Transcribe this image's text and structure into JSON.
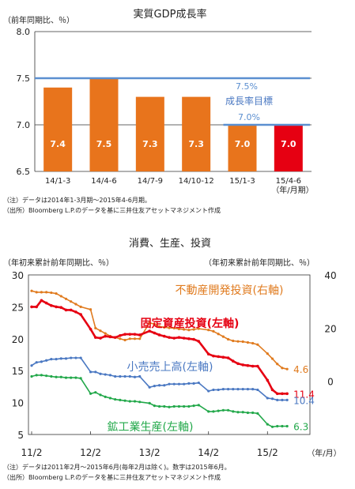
{
  "chart_data": [
    {
      "type": "bar",
      "title": "実質GDP成長率",
      "ylabel": "（前年同期比、％）",
      "categories": [
        "14/1-3",
        "14/4-6",
        "14/7-9",
        "14/10-12",
        "15/1-3",
        "15/4-6"
      ],
      "x_unit_label": "（年/月期）",
      "values": [
        7.4,
        7.5,
        7.3,
        7.3,
        7.0,
        7.0
      ],
      "data_labels": [
        "7.4",
        "7.5",
        "7.3",
        "7.3",
        "7.0",
        "7.0"
      ],
      "ylim": [
        6.5,
        8.0
      ],
      "yticks": [
        "6.5",
        "7.0",
        "7.5",
        "8.0"
      ],
      "bar_color": "#e8741c",
      "highlight_color": "#e60012",
      "target_line_color": "#5b8fd0",
      "targets": [
        {
          "label": "7.5%",
          "value": 7.5,
          "from_index": 0,
          "to_index": 5
        },
        {
          "label": "7.0%",
          "value": 7.0,
          "from_index": 4,
          "to_index": 5
        }
      ],
      "target_caption": "成長率目標",
      "notes": [
        "（注）データは2014年1-3月期～2015年4-6月期。",
        "（出所）Bloomberg L.P.のデータを基に三井住友アセットマネジメント作成"
      ]
    },
    {
      "type": "line",
      "title": "消費、生産、投資",
      "ylabel_left": "（年初来累計前年同期比、％）",
      "ylabel_right": "（年初来累計前年同期比、％）",
      "xlabel": "（年/月）",
      "x_ticks": [
        "11/2",
        "12/2",
        "13/2",
        "14/2",
        "15/2"
      ],
      "x_tick_positions": [
        0,
        12,
        24,
        36,
        48
      ],
      "x_range": [
        0,
        56
      ],
      "ylim_left": [
        5,
        30
      ],
      "yticks_left": [
        "5",
        "10",
        "15",
        "20",
        "25",
        "30"
      ],
      "ylim_right": [
        -20,
        40
      ],
      "yticks_right": [
        "0",
        "20",
        "40"
      ],
      "series": [
        {
          "name": "不動産開発投資(右軸)",
          "axis": "right",
          "color": "#e07b1f",
          "end_label": "4.6",
          "x": [
            0,
            1,
            2,
            3,
            4,
            5,
            6,
            7,
            8,
            9,
            10,
            12,
            13,
            14,
            15,
            16,
            17,
            18,
            19,
            20,
            21,
            22,
            24,
            25,
            26,
            27,
            28,
            29,
            30,
            31,
            32,
            33,
            34,
            36,
            37,
            38,
            39,
            40,
            41,
            42,
            43,
            44,
            45,
            46,
            48,
            49,
            50,
            51,
            52
          ],
          "y": [
            34,
            33.5,
            33.5,
            33.5,
            33.3,
            33,
            32,
            31,
            30,
            29,
            28,
            27,
            20,
            19,
            18,
            17,
            16.5,
            16,
            15.5,
            16,
            16,
            16,
            22,
            21.5,
            20.6,
            20.3,
            20.1,
            20,
            19.7,
            19.5,
            19.3,
            19.5,
            19.8,
            19.3,
            18.8,
            17.8,
            16.8,
            15.8,
            15.2,
            15,
            14.9,
            14.6,
            14.3,
            13.8,
            10.4,
            8.5,
            6.5,
            5,
            4.6
          ]
        },
        {
          "name": "固定資産投資(左軸)",
          "axis": "left",
          "color": "#e60012",
          "end_label": "11.4",
          "x": [
            0,
            1,
            2,
            3,
            4,
            5,
            6,
            7,
            8,
            9,
            10,
            12,
            13,
            14,
            15,
            16,
            17,
            18,
            19,
            20,
            21,
            22,
            24,
            25,
            26,
            27,
            28,
            29,
            30,
            31,
            32,
            33,
            34,
            36,
            37,
            38,
            39,
            40,
            41,
            42,
            43,
            44,
            45,
            46,
            48,
            49,
            50,
            51,
            52
          ],
          "y": [
            25,
            25,
            26,
            25.6,
            25.2,
            25,
            24.9,
            24.5,
            24.5,
            24.2,
            23.8,
            21.5,
            20.2,
            20.1,
            20.4,
            20.3,
            20.2,
            20.5,
            20.7,
            20.7,
            20.7,
            20.6,
            21.2,
            20.9,
            20.6,
            20.4,
            20.2,
            20.1,
            20.2,
            20.1,
            20,
            19.9,
            19.6,
            17.6,
            17.3,
            17.2,
            17.1,
            17,
            16.5,
            16.1,
            15.9,
            15.8,
            15.7,
            15.7,
            13.5,
            12,
            11.4,
            11.4,
            11.4
          ]
        },
        {
          "name": "小売売上高(左軸)",
          "axis": "left",
          "color": "#4a78c2",
          "end_label": "10.4",
          "x": [
            0,
            1,
            2,
            3,
            4,
            5,
            6,
            7,
            8,
            9,
            10,
            12,
            13,
            14,
            15,
            16,
            17,
            18,
            19,
            20,
            21,
            22,
            24,
            25,
            26,
            27,
            28,
            29,
            30,
            31,
            32,
            33,
            34,
            36,
            37,
            38,
            39,
            40,
            41,
            42,
            43,
            44,
            45,
            46,
            48,
            49,
            50,
            51,
            52
          ],
          "y": [
            15.8,
            16.3,
            16.4,
            16.6,
            16.8,
            16.8,
            16.9,
            16.9,
            17,
            17,
            17,
            14.8,
            14.8,
            14.5,
            14.4,
            14.3,
            14.1,
            14.1,
            14.1,
            14.1,
            14,
            14.1,
            12.4,
            12.6,
            12.7,
            12.7,
            12.9,
            12.9,
            12.9,
            12.9,
            13,
            13,
            13.1,
            11.8,
            12,
            12,
            12.1,
            12.1,
            12.1,
            12.1,
            12.1,
            12.1,
            12.1,
            12,
            10.7,
            10.6,
            10.4,
            10.4,
            10.4
          ]
        },
        {
          "name": "鉱工業生産(左軸)",
          "axis": "left",
          "color": "#22a84a",
          "end_label": "6.3",
          "x": [
            0,
            1,
            2,
            3,
            4,
            5,
            6,
            7,
            8,
            9,
            10,
            12,
            13,
            14,
            15,
            16,
            17,
            18,
            19,
            20,
            21,
            22,
            24,
            25,
            26,
            27,
            28,
            29,
            30,
            31,
            32,
            33,
            34,
            36,
            37,
            38,
            39,
            40,
            41,
            42,
            43,
            44,
            45,
            46,
            48,
            49,
            50,
            51,
            52
          ],
          "y": [
            14.1,
            14.3,
            14.3,
            14.2,
            14.1,
            14,
            14,
            13.9,
            13.9,
            13.9,
            13.8,
            11.4,
            11.6,
            11.2,
            10.9,
            10.7,
            10.5,
            10.4,
            10.3,
            10.2,
            10.2,
            10.1,
            9.9,
            9.5,
            9.4,
            9.4,
            9.3,
            9.4,
            9.4,
            9.4,
            9.4,
            9.5,
            9.6,
            8.6,
            8.6,
            8.7,
            8.8,
            8.8,
            8.6,
            8.5,
            8.5,
            8.4,
            8.4,
            8.3,
            6.6,
            6.2,
            6.3,
            6.3,
            6.3
          ]
        }
      ],
      "notes": [
        "（注）データは2011年2月～2015年6月(毎年2月は除く)。数字は2015年6月。",
        "（出所）Bloomberg L.P.のデータを基に三井住友アセットマネジメント作成"
      ]
    }
  ]
}
